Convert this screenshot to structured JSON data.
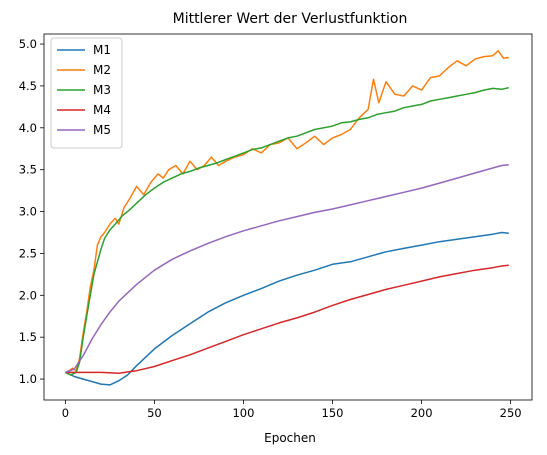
{
  "chart_data": {
    "type": "line",
    "title": "Mittlerer Wert der Verlustfunktion",
    "xlabel": "Epochen",
    "ylabel": "",
    "xlim": [
      -12,
      262
    ],
    "ylim": [
      0.75,
      5.12
    ],
    "xticks": [
      0,
      50,
      100,
      150,
      200,
      250
    ],
    "yticks": [
      1.0,
      1.5,
      2.0,
      2.5,
      3.0,
      3.5,
      4.0,
      4.5,
      5.0
    ],
    "grid": false,
    "legend_position": "top-left",
    "series": [
      {
        "name": "M1",
        "color": "#1f77b4",
        "x": [
          0,
          5,
          10,
          15,
          20,
          25,
          30,
          35,
          40,
          50,
          60,
          70,
          80,
          90,
          100,
          110,
          120,
          130,
          140,
          150,
          160,
          170,
          180,
          190,
          200,
          210,
          220,
          230,
          240,
          245,
          249
        ],
        "y": [
          1.08,
          1.03,
          1.0,
          0.97,
          0.94,
          0.93,
          0.98,
          1.05,
          1.16,
          1.36,
          1.52,
          1.66,
          1.8,
          1.91,
          2.0,
          2.08,
          2.17,
          2.24,
          2.3,
          2.37,
          2.4,
          2.46,
          2.52,
          2.56,
          2.6,
          2.64,
          2.67,
          2.7,
          2.73,
          2.75,
          2.74
        ]
      },
      {
        "name": "M2",
        "color": "#ff7f0e",
        "x": [
          0,
          2,
          4,
          6,
          8,
          10,
          12,
          14,
          16,
          18,
          20,
          22,
          25,
          28,
          30,
          33,
          36,
          40,
          44,
          48,
          52,
          55,
          58,
          62,
          66,
          70,
          74,
          78,
          82,
          86,
          90,
          95,
          100,
          105,
          110,
          115,
          120,
          125,
          130,
          135,
          140,
          145,
          150,
          155,
          160,
          165,
          170,
          173,
          176,
          180,
          185,
          190,
          195,
          200,
          205,
          210,
          215,
          220,
          225,
          230,
          235,
          240,
          243,
          246,
          249
        ],
        "y": [
          1.08,
          1.1,
          1.13,
          1.1,
          1.25,
          1.55,
          1.8,
          2.1,
          2.3,
          2.6,
          2.7,
          2.75,
          2.85,
          2.92,
          2.85,
          3.05,
          3.15,
          3.3,
          3.2,
          3.35,
          3.45,
          3.4,
          3.5,
          3.55,
          3.45,
          3.6,
          3.5,
          3.55,
          3.65,
          3.55,
          3.6,
          3.65,
          3.68,
          3.75,
          3.7,
          3.8,
          3.82,
          3.88,
          3.75,
          3.82,
          3.9,
          3.8,
          3.88,
          3.92,
          3.98,
          4.12,
          4.22,
          4.58,
          4.3,
          4.55,
          4.4,
          4.38,
          4.5,
          4.45,
          4.6,
          4.62,
          4.72,
          4.8,
          4.74,
          4.82,
          4.85,
          4.86,
          4.92,
          4.83,
          4.84
        ]
      },
      {
        "name": "M3",
        "color": "#2ca02c",
        "x": [
          0,
          3,
          6,
          8,
          10,
          12,
          14,
          16,
          18,
          20,
          22,
          25,
          28,
          32,
          36,
          40,
          45,
          50,
          55,
          60,
          65,
          70,
          75,
          80,
          85,
          90,
          95,
          100,
          105,
          110,
          115,
          120,
          125,
          130,
          135,
          140,
          145,
          150,
          155,
          160,
          165,
          170,
          175,
          180,
          185,
          190,
          195,
          200,
          205,
          210,
          215,
          220,
          225,
          230,
          235,
          240,
          245,
          249
        ],
        "y": [
          1.08,
          1.05,
          1.08,
          1.2,
          1.5,
          1.75,
          2.0,
          2.25,
          2.4,
          2.55,
          2.68,
          2.78,
          2.85,
          2.95,
          3.02,
          3.1,
          3.2,
          3.28,
          3.35,
          3.4,
          3.45,
          3.48,
          3.52,
          3.55,
          3.58,
          3.62,
          3.66,
          3.7,
          3.74,
          3.76,
          3.8,
          3.84,
          3.88,
          3.9,
          3.94,
          3.98,
          4.0,
          4.02,
          4.06,
          4.07,
          4.1,
          4.12,
          4.16,
          4.18,
          4.2,
          4.24,
          4.26,
          4.28,
          4.32,
          4.34,
          4.36,
          4.38,
          4.4,
          4.42,
          4.45,
          4.47,
          4.46,
          4.48
        ]
      },
      {
        "name": "M4",
        "color": "#d62728",
        "x": [
          0,
          10,
          20,
          30,
          40,
          50,
          60,
          70,
          80,
          90,
          100,
          110,
          120,
          130,
          140,
          150,
          160,
          170,
          180,
          190,
          200,
          210,
          220,
          230,
          240,
          245,
          249
        ],
        "y": [
          1.08,
          1.08,
          1.08,
          1.07,
          1.1,
          1.15,
          1.22,
          1.29,
          1.37,
          1.45,
          1.53,
          1.6,
          1.67,
          1.73,
          1.8,
          1.88,
          1.95,
          2.01,
          2.07,
          2.12,
          2.17,
          2.22,
          2.26,
          2.3,
          2.33,
          2.35,
          2.36
        ]
      },
      {
        "name": "M5",
        "color": "#9467bd",
        "x": [
          0,
          5,
          10,
          15,
          20,
          25,
          30,
          35,
          40,
          50,
          60,
          70,
          80,
          90,
          100,
          110,
          120,
          130,
          140,
          150,
          160,
          170,
          180,
          190,
          200,
          210,
          220,
          230,
          240,
          245,
          249
        ],
        "y": [
          1.08,
          1.12,
          1.28,
          1.48,
          1.65,
          1.8,
          1.93,
          2.03,
          2.13,
          2.3,
          2.43,
          2.53,
          2.62,
          2.7,
          2.77,
          2.83,
          2.89,
          2.94,
          2.99,
          3.03,
          3.08,
          3.13,
          3.18,
          3.23,
          3.28,
          3.34,
          3.4,
          3.46,
          3.52,
          3.55,
          3.56
        ]
      }
    ]
  }
}
